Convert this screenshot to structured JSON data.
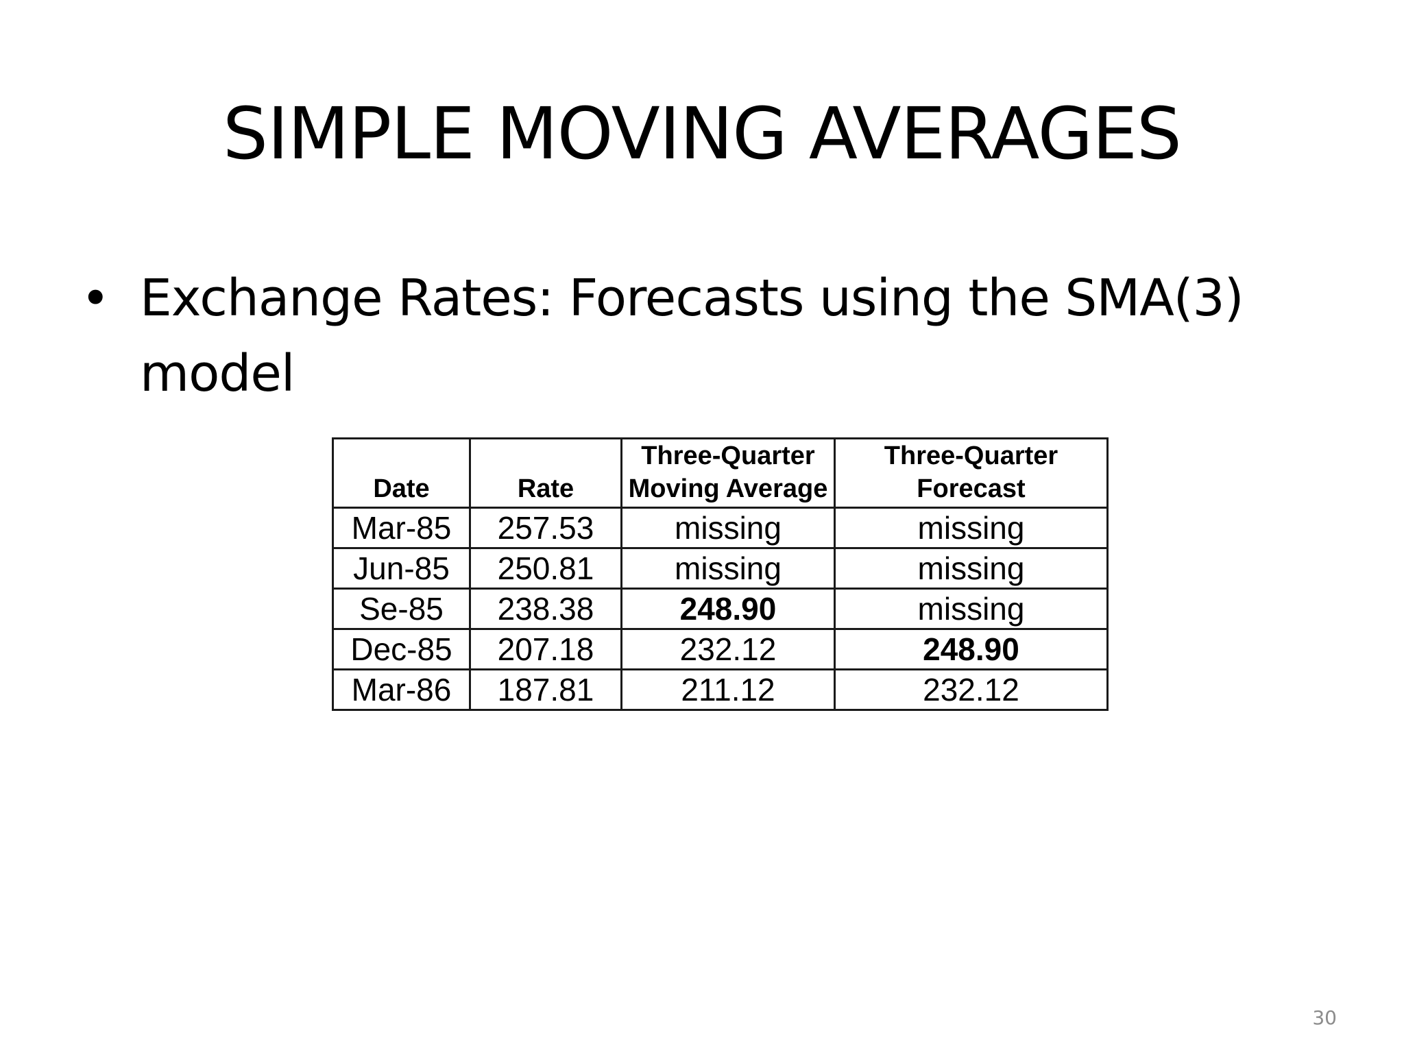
{
  "slide": {
    "title": "SIMPLE MOVING AVERAGES",
    "bullet": "Exchange Rates: Forecasts using the SMA(3) model",
    "bullet_symbol": "•",
    "page_number": "30"
  },
  "table": {
    "headers": {
      "date": "Date",
      "rate": "Rate",
      "ma_line1": "Three-Quarter",
      "ma_line2": "Moving Average",
      "fc_line1": "Three-Quarter",
      "fc_line2": "Forecast"
    },
    "rows": [
      {
        "date": "Mar-85",
        "rate": "257.53",
        "ma": "missing",
        "fc": "missing"
      },
      {
        "date": "Jun-85",
        "rate": "250.81",
        "ma": "missing",
        "fc": "missing"
      },
      {
        "date": "Se-85",
        "rate": "238.38",
        "ma": "248.90",
        "fc": "missing"
      },
      {
        "date": "Dec-85",
        "rate": "207.18",
        "ma": "232.12",
        "fc": "248.90"
      },
      {
        "date": "Mar-86",
        "rate": "187.81",
        "ma": "211.12",
        "fc": "232.12"
      }
    ]
  }
}
